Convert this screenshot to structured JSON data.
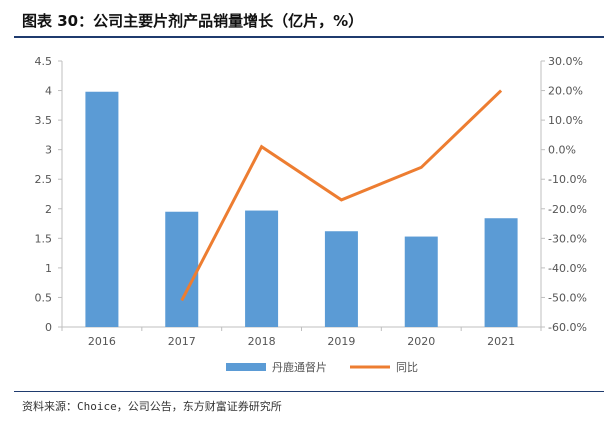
{
  "title": "图表 30：公司主要片剂产品销量增长（亿片，%）",
  "source": "资料来源：Choice，公司公告，东方财富证券研究所",
  "colors": {
    "bar": "#5b9bd5",
    "line": "#ed7d31",
    "axis": "#bfbfbf",
    "text": "#555555",
    "rule": "#1f3b6e"
  },
  "chart_data": {
    "type": "bar",
    "categories": [
      "2016",
      "2017",
      "2018",
      "2019",
      "2020",
      "2021"
    ],
    "series": [
      {
        "name": "丹鹿通督片",
        "type": "bar",
        "axis": "left",
        "values": [
          3.98,
          1.95,
          1.97,
          1.62,
          1.53,
          1.84
        ]
      },
      {
        "name": "同比",
        "type": "line",
        "axis": "right",
        "values": [
          null,
          -51.0,
          1.0,
          -17.0,
          -6.0,
          20.0
        ]
      }
    ],
    "y_left": {
      "min": 0,
      "max": 4.5,
      "ticks": [
        "0",
        "0.5",
        "1",
        "1.5",
        "2",
        "2.5",
        "3",
        "3.5",
        "4",
        "4.5"
      ]
    },
    "y_right": {
      "min": -60,
      "max": 30,
      "ticks": [
        "-60.0%",
        "-50.0%",
        "-40.0%",
        "-30.0%",
        "-20.0%",
        "-10.0%",
        "0.0%",
        "10.0%",
        "20.0%",
        "30.0%"
      ]
    },
    "grid": false,
    "legend_position": "bottom"
  }
}
